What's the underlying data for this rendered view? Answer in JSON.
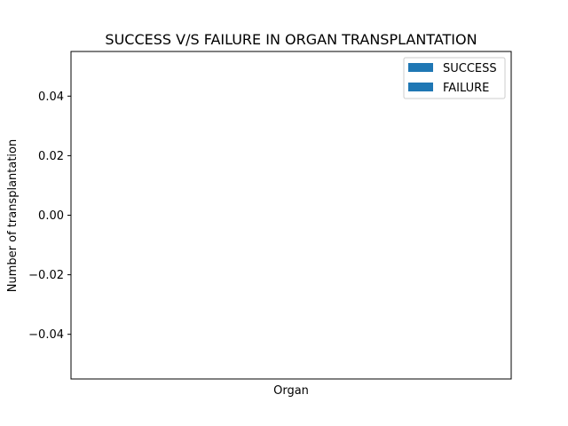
{
  "chart_data": {
    "type": "bar",
    "title": "SUCCESS V/S FAILURE IN ORGAN TRANSPLANTATION",
    "xlabel": "Organ",
    "ylabel": "Number of transplantation",
    "categories": [],
    "series": [
      {
        "name": "SUCCESS",
        "values": [],
        "color": "#1f77b4"
      },
      {
        "name": "FAILURE",
        "values": [],
        "color": "#1f77b4"
      }
    ],
    "ylim": [
      -0.055,
      0.055
    ],
    "yticks": [
      0.04,
      0.02,
      0.0,
      -0.02,
      -0.04
    ],
    "ytick_labels": [
      "0.04",
      "0.02",
      "0.00",
      "−0.02",
      "−0.04"
    ],
    "grid": false,
    "legend_position": "top-right"
  }
}
